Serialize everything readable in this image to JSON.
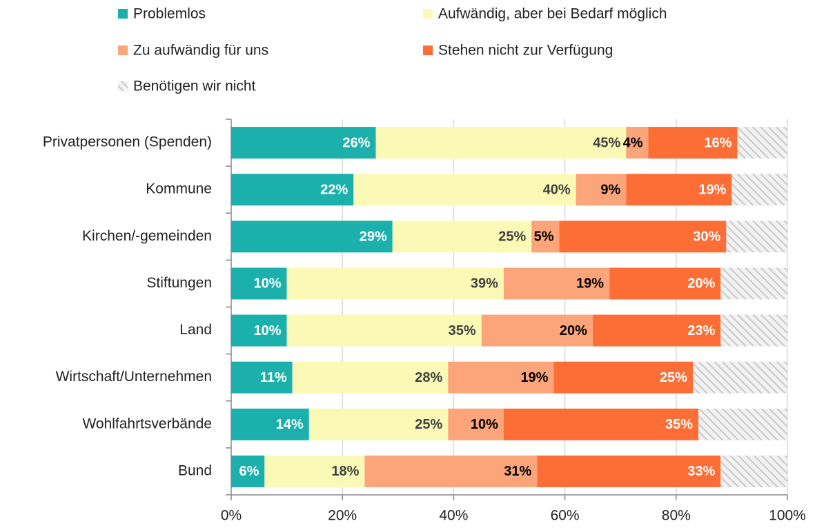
{
  "chart_data": {
    "type": "stacked_barh",
    "categories": [
      "Privatpersonen (Spenden)",
      "Kommune",
      "Kirchen/-gemeinden",
      "Stiftungen",
      "Land",
      "Wirtschaft/Unternehmen",
      "Wohlfahrtsverbände",
      "Bund"
    ],
    "series": [
      {
        "name": "Problemlos",
        "color": "#1cb0ad",
        "label_color": "#ffffff",
        "values": [
          26,
          22,
          29,
          10,
          10,
          11,
          14,
          6
        ],
        "value_labels": [
          "26%",
          "22%",
          "29%",
          "10%",
          "10%",
          "11%",
          "14%",
          "6%"
        ]
      },
      {
        "name": "Aufwändig, aber bei Bedarf möglich",
        "color": "#fafab6",
        "label_color": "#404040",
        "values": [
          45,
          40,
          25,
          39,
          35,
          28,
          25,
          18
        ],
        "value_labels": [
          "45%",
          "40%",
          "25%",
          "39%",
          "35%",
          "28%",
          "25%",
          "18%"
        ]
      },
      {
        "name": "Zu aufwändig für uns",
        "color": "#fca57a",
        "label_color": "#000000",
        "values": [
          4,
          9,
          5,
          19,
          20,
          19,
          10,
          31
        ],
        "value_labels": [
          "4%",
          "9%",
          "5%",
          "19%",
          "20%",
          "19%",
          "10%",
          "31%"
        ]
      },
      {
        "name": "Stehen nicht zur Verfügung",
        "color": "#fd6d36",
        "label_color": "#ffffff",
        "values": [
          16,
          19,
          30,
          20,
          23,
          25,
          35,
          33
        ],
        "value_labels": [
          "16%",
          "19%",
          "30%",
          "20%",
          "23%",
          "25%",
          "35%",
          "33%"
        ]
      },
      {
        "name": "Benötigen wir nicht",
        "color": "#d0d0d0",
        "pattern": "hatch",
        "values": [
          9,
          10,
          11,
          12,
          12,
          17,
          16,
          12
        ]
      }
    ],
    "xlim": [
      0,
      100
    ],
    "xticks": [
      {
        "value": 0,
        "label": "0%"
      },
      {
        "value": 20,
        "label": "20%"
      },
      {
        "value": 40,
        "label": "40%"
      },
      {
        "value": 60,
        "label": "60%"
      },
      {
        "value": 80,
        "label": "80%"
      },
      {
        "value": 100,
        "label": "100%"
      }
    ],
    "grid": true,
    "legend": "top"
  }
}
